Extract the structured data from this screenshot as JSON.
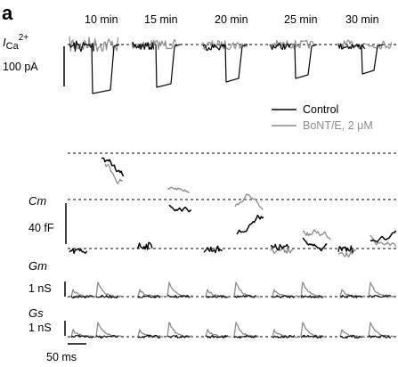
{
  "panel_label": "a",
  "time_labels": [
    "10 min",
    "15 min",
    "20 min",
    "25 min",
    "30 min"
  ],
  "trace_labels": {
    "ica": {
      "main": "I",
      "sub": "Ca",
      "sup": "2+"
    },
    "cm": "Cm",
    "gm": "Gm",
    "gs": "Gs"
  },
  "scale_bars": {
    "current": "100 pA",
    "capacitance": "40 fF",
    "gm_conductance": "1 nS",
    "gs_conductance": "1 nS",
    "time": "50 ms"
  },
  "legend": [
    {
      "label": "Control",
      "color": "#000000"
    },
    {
      "label": "BoNT/E, 2 μM",
      "color": "#8c8c8c"
    }
  ],
  "colors": {
    "control": "#000000",
    "bont": "#8c8c8c",
    "baseline": "#000000"
  }
}
